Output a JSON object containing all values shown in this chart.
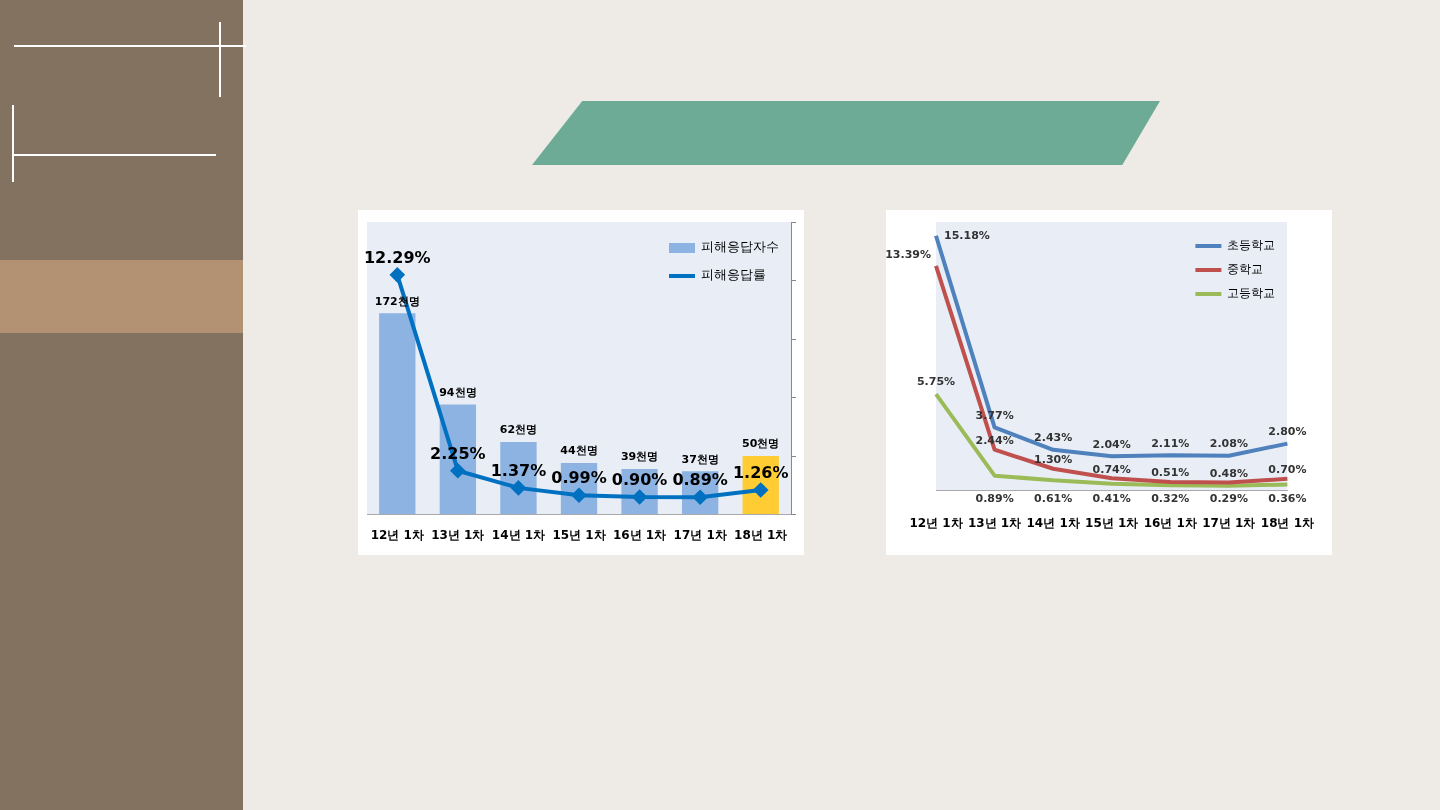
{
  "chart_data": [
    {
      "type": "bar",
      "categories": [
        "12년 1차",
        "13년 1차",
        "14년 1차",
        "15년 1차",
        "16년 1차",
        "17년 1차",
        "18년 1차"
      ],
      "series": [
        {
          "name": "피해응답자수",
          "type": "bar",
          "color": "#8db3e2",
          "colors": [
            "#8db3e2",
            "#8db3e2",
            "#8db3e2",
            "#8db3e2",
            "#8db3e2",
            "#8db3e2",
            "#ffcc33"
          ],
          "values": [
            172,
            94,
            62,
            44,
            39,
            37,
            50
          ],
          "value_labels": [
            "172천명",
            "94천명",
            "62천명",
            "44천명",
            "39천명",
            "37천명",
            "50천명"
          ]
        },
        {
          "name": "피해응답률",
          "type": "line",
          "axis": "y2",
          "color": "#0070c0",
          "values": [
            12.29,
            2.25,
            1.37,
            0.99,
            0.9,
            0.89,
            1.26
          ],
          "value_labels": [
            "12.29%",
            "2.25%",
            "1.37%",
            "0.99%",
            "0.90%",
            "0.89%",
            "1.26%"
          ]
        }
      ],
      "ylim": [
        0,
        250
      ],
      "yticks": [
        {
          "value": 0,
          "label": null
        },
        {
          "value": 50,
          "label": null
        },
        {
          "value": 100,
          "label": null
        },
        {
          "value": 150,
          "label": null
        },
        {
          "value": 200,
          "label": null
        },
        {
          "value": 250,
          "label": null
        }
      ],
      "y2lim": [
        0,
        15
      ],
      "tick_labels": "x",
      "grid": false,
      "legend": "top right",
      "marker": "diamond",
      "line_style": "solid"
    },
    {
      "type": "line",
      "categories": [
        "12년 1차",
        "13년 1차",
        "14년 1차",
        "15년 1차",
        "16년 1차",
        "17년 1차",
        "18년 1차"
      ],
      "series": [
        {
          "name": "초등학교",
          "color": "#4f81bd",
          "values": [
            15.18,
            3.77,
            2.43,
            2.04,
            2.11,
            2.08,
            2.8
          ],
          "value_labels": [
            "15.18%",
            "3.77%",
            "2.43%",
            "2.04%",
            "2.11%",
            "2.08%",
            "2.80%"
          ]
        },
        {
          "name": "중학교",
          "color": "#c0504d",
          "values": [
            13.39,
            2.44,
            1.3,
            0.74,
            0.51,
            0.48,
            0.7
          ],
          "value_labels": [
            "13.39%",
            "2.44%",
            "1.30%",
            "0.74%",
            "0.51%",
            "0.48%",
            "0.70%"
          ]
        },
        {
          "name": "고등학교",
          "color": "#9bbb59",
          "values": [
            5.75,
            0.89,
            0.61,
            0.41,
            0.32,
            0.29,
            0.36
          ],
          "value_labels": [
            "5.75%",
            "0.89%",
            "0.61%",
            "0.41%",
            "0.32%",
            "0.29%",
            "0.36%"
          ]
        }
      ],
      "ylim": [
        0,
        16
      ],
      "tick_labels": "x",
      "grid": false,
      "legend": "top right",
      "marker": "none",
      "line_style": "solid"
    }
  ]
}
